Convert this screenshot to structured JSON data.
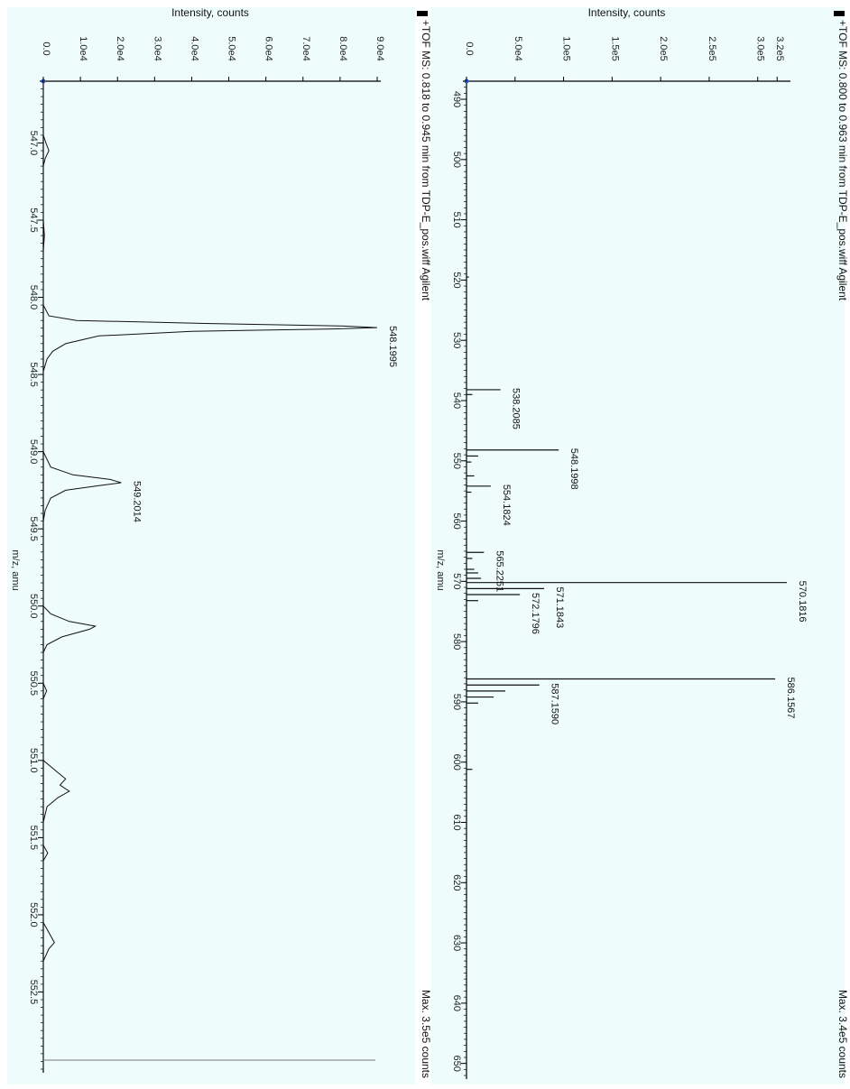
{
  "chart_data": [
    {
      "type": "line",
      "panel": "left",
      "title": "+TOF MS: 0.818 to 0.945 min from TDP-E_pos.wiff Agilent",
      "max_label": "Max. 3.5e5 counts",
      "ylabel": "Intensity, counts",
      "xlabel": "m/z, amu",
      "xlim": [
        546.6,
        553.0
      ],
      "ylim": [
        0,
        90000
      ],
      "x_ticks": [
        547.0,
        547.5,
        548.0,
        548.5,
        549.0,
        549.5,
        550.0,
        550.5,
        551.0,
        551.5,
        552.0,
        552.5
      ],
      "x_tick_labels": [
        "547.0",
        "547.5",
        "548.0",
        "548.5",
        "549.0",
        "549.5",
        "550.0",
        "550.5",
        "551.0",
        "551.5",
        "552.0",
        "552.5"
      ],
      "y_ticks": [
        0,
        10000,
        20000,
        30000,
        40000,
        50000,
        60000,
        70000,
        80000,
        90000
      ],
      "y_tick_labels": [
        "0.0",
        "1.0e4",
        "2.0e4",
        "3.0e4",
        "4.0e4",
        "5.0e4",
        "6.0e4",
        "7.0e4",
        "8.0e4",
        "9.0e4"
      ],
      "series": [
        {
          "points": [
            [
              546.6,
              0
            ],
            [
              546.95,
              0
            ],
            [
              547.0,
              700
            ],
            [
              547.05,
              1500
            ],
            [
              547.1,
              500
            ],
            [
              547.15,
              0
            ],
            [
              547.5,
              0
            ],
            [
              547.6,
              300
            ],
            [
              547.7,
              0
            ],
            [
              547.95,
              0
            ],
            [
              548.05,
              0
            ],
            [
              548.12,
              1500
            ],
            [
              548.15,
              9000
            ],
            [
              548.17,
              45000
            ],
            [
              548.185,
              80000
            ],
            [
              548.196,
              90000
            ],
            [
              548.205,
              78000
            ],
            [
              548.22,
              40000
            ],
            [
              548.25,
              15000
            ],
            [
              548.3,
              6000
            ],
            [
              548.35,
              2500
            ],
            [
              548.4,
              1000
            ],
            [
              548.48,
              0
            ],
            [
              548.5,
              0
            ],
            [
              549.0,
              0
            ],
            [
              549.1,
              2000
            ],
            [
              549.15,
              8000
            ],
            [
              549.18,
              18000
            ],
            [
              549.201,
              21000
            ],
            [
              549.22,
              15000
            ],
            [
              549.25,
              6000
            ],
            [
              549.3,
              2000
            ],
            [
              549.38,
              500
            ],
            [
              549.45,
              0
            ],
            [
              550.0,
              0
            ],
            [
              550.05,
              2000
            ],
            [
              550.1,
              7000
            ],
            [
              550.13,
              14000
            ],
            [
              550.15,
              12500
            ],
            [
              550.2,
              5000
            ],
            [
              550.25,
              1000
            ],
            [
              550.3,
              0
            ],
            [
              550.5,
              0
            ],
            [
              550.55,
              900
            ],
            [
              550.6,
              0
            ],
            [
              551.0,
              0
            ],
            [
              551.08,
              4000
            ],
            [
              551.12,
              6000
            ],
            [
              551.16,
              4500
            ],
            [
              551.2,
              7000
            ],
            [
              551.24,
              4000
            ],
            [
              551.3,
              1000
            ],
            [
              551.4,
              0
            ],
            [
              551.55,
              0
            ],
            [
              551.6,
              1200
            ],
            [
              551.65,
              0
            ],
            [
              552.05,
              0
            ],
            [
              552.12,
              1600
            ],
            [
              552.18,
              3000
            ],
            [
              552.22,
              1500
            ],
            [
              552.3,
              0
            ],
            [
              552.95,
              0
            ],
            [
              553.0,
              0
            ]
          ]
        }
      ],
      "annotations": [
        {
          "x": 548.196,
          "y": 90000,
          "text": "548.1995"
        },
        {
          "x": 549.201,
          "y": 21000,
          "text": "549.2014"
        }
      ]
    },
    {
      "type": "bar",
      "panel": "right",
      "title": "+TOF MS: 0.800 to 0.963 min from TDP-E_pos.wiff Agilent",
      "max_label": "Max. 3.4e5 counts",
      "ylabel": "Intensity, counts",
      "xlabel": "m/z, amu",
      "xlim": [
        487,
        652
      ],
      "ylim": [
        0,
        330000
      ],
      "x_ticks": [
        490,
        500,
        510,
        520,
        530,
        540,
        550,
        560,
        570,
        580,
        590,
        600,
        610,
        620,
        630,
        640,
        650
      ],
      "x_tick_labels": [
        "490",
        "500",
        "510",
        "520",
        "530",
        "540",
        "550",
        "560",
        "570",
        "580",
        "590",
        "600",
        "610",
        "620",
        "630",
        "640",
        "650"
      ],
      "y_ticks": [
        0,
        50000,
        100000,
        150000,
        200000,
        250000,
        300000,
        320000
      ],
      "y_tick_labels": [
        "0.0",
        "5.0e4",
        "1.0e5",
        "1.5e5",
        "2.0e5",
        "2.5e5",
        "3.0e5",
        "3.2e5"
      ],
      "x": [
        519.5,
        538.2,
        539.0,
        548.2,
        549.2,
        550.2,
        552.5,
        554.2,
        555.2,
        565.2,
        566.2,
        568.0,
        568.6,
        569.5,
        570.2,
        571.2,
        572.2,
        573.2,
        586.2,
        587.2,
        588.2,
        589.2,
        590.2,
        601.2
      ],
      "values": [
        2500,
        35000,
        6000,
        95000,
        12000,
        5000,
        8000,
        25000,
        5000,
        18000,
        6000,
        8000,
        12000,
        15000,
        330000,
        80000,
        55000,
        12000,
        318000,
        75000,
        40000,
        28000,
        12000,
        6000
      ],
      "annotations": [
        {
          "x": 538.2,
          "y": 35000,
          "text": "538.2085"
        },
        {
          "x": 548.2,
          "y": 95000,
          "text": "548.1998"
        },
        {
          "x": 554.2,
          "y": 25000,
          "text": "554.1824"
        },
        {
          "x": 565.2,
          "y": 18000,
          "text": "565.2251"
        },
        {
          "x": 570.2,
          "y": 330000,
          "text": "570.1816"
        },
        {
          "x": 571.2,
          "y": 80000,
          "text": "571.1843"
        },
        {
          "x": 572.2,
          "y": 55000,
          "text": "572.1796"
        },
        {
          "x": 586.2,
          "y": 318000,
          "text": "586.1567"
        },
        {
          "x": 587.2,
          "y": 75000,
          "text": "587.1590"
        }
      ]
    }
  ]
}
